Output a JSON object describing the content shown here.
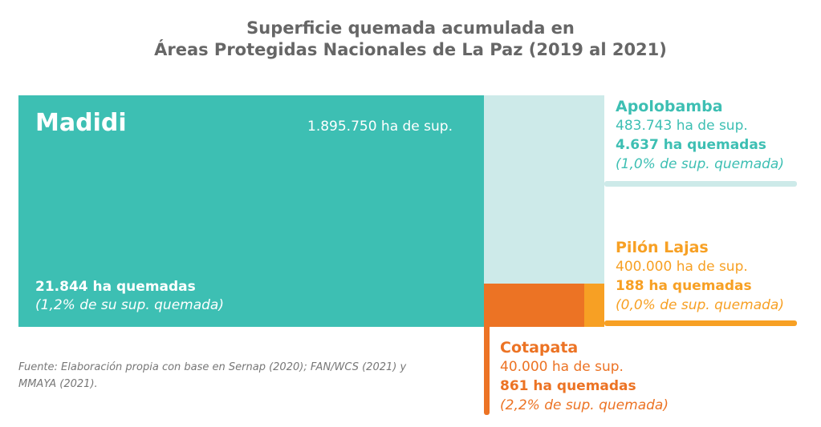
{
  "chart_data": {
    "type": "treemap",
    "title_line1": "Superficie quemada acumulada en",
    "title_line2": "Áreas Protegidas Nacionales de La Paz (2019 al 2021)",
    "items": [
      {
        "name": "Madidi",
        "area_ha": 1895750,
        "area_label": "1.895.750 ha de sup.",
        "burned_ha": 21844,
        "burned_label": "21.844 ha quemadas",
        "pct_label": "(1,2% de su sup. quemada)",
        "color": "#3dbfb3"
      },
      {
        "name": "Apolobamba",
        "area_ha": 483743,
        "area_label": "483.743 ha de sup.",
        "burned_ha": 4637,
        "burned_label": "4.637 ha quemadas",
        "pct_label": "(1,0% de sup. quemada)",
        "color": "#cdeae9",
        "text_color": "#3dbfb3"
      },
      {
        "name": "Pilón Lajas",
        "area_ha": 400000,
        "area_label": "400.000 ha de sup.",
        "burned_ha": 188,
        "burned_label": "188 ha quemadas",
        "pct_label": "(0,0% de sup. quemada)",
        "color": "#f7a024"
      },
      {
        "name": "Cotapata",
        "area_ha": 40000,
        "area_label": "40.000 ha de sup.",
        "burned_ha": 861,
        "burned_label": "861 ha quemadas",
        "pct_label": "(2,2% de sup. quemada)",
        "color": "#ec7324"
      }
    ],
    "source": "Fuente: Elaboración propia con base en Sernap (2020); FAN/WCS (2021) y MMAYA (2021)."
  }
}
